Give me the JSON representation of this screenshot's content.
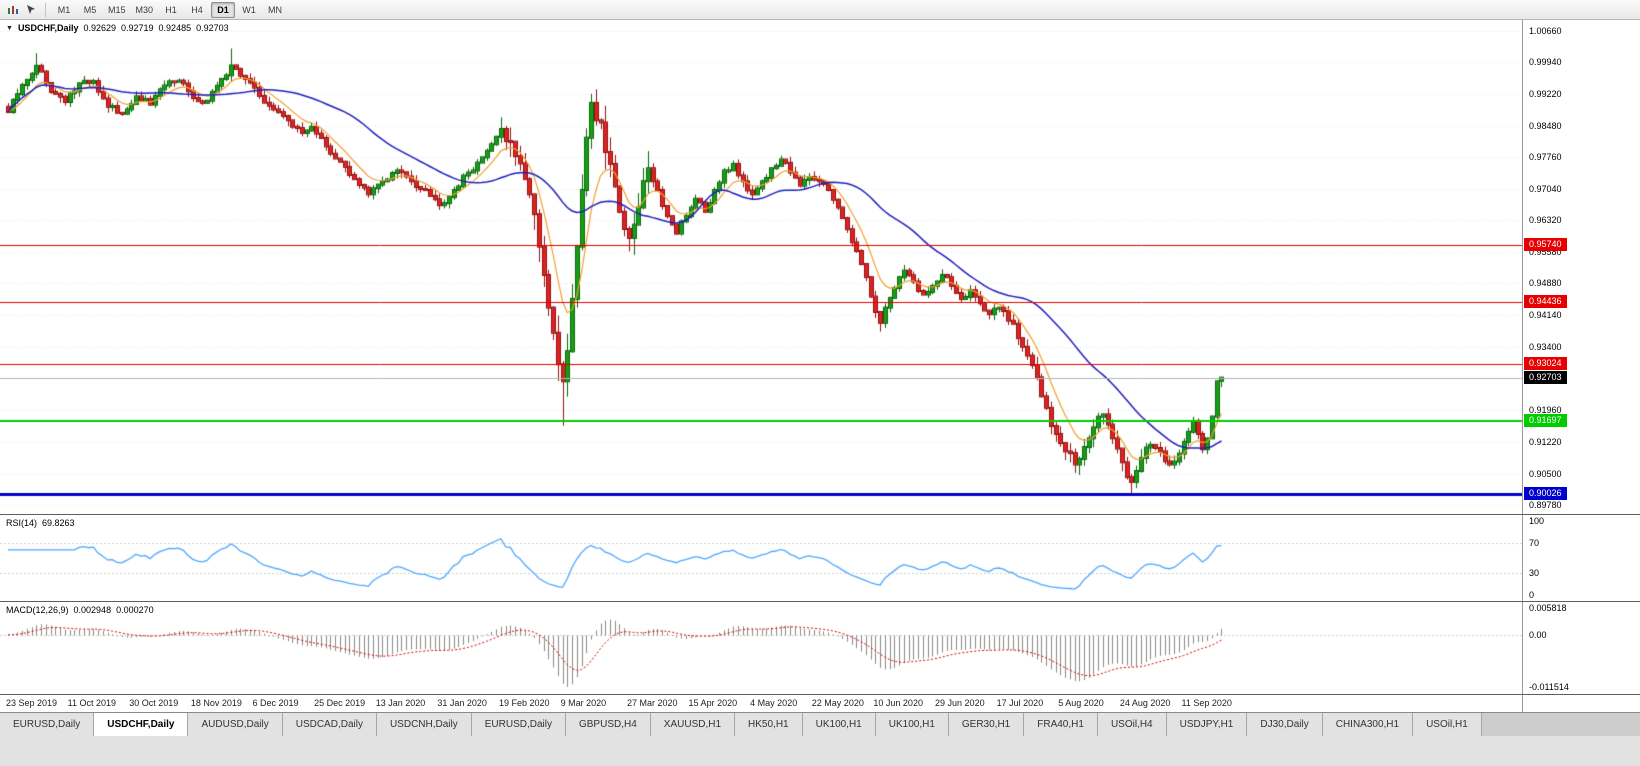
{
  "icons": {
    "expand_arrow": "▼"
  },
  "toolbar": {
    "timeframes": [
      "M1",
      "M5",
      "M15",
      "M30",
      "H1",
      "H4",
      "D1",
      "W1",
      "MN"
    ],
    "active_timeframe": "D1"
  },
  "chart": {
    "title": {
      "symbol": "USDCHF,Daily",
      "open": "0.92629",
      "high": "0.92719",
      "low": "0.92485",
      "close": "0.92703"
    }
  },
  "indicators": {
    "rsi": {
      "name": "RSI(14)",
      "value": "69.8263",
      "scale": [
        {
          "label": "100",
          "value": 100
        },
        {
          "label": "70",
          "value": 70
        },
        {
          "label": "30",
          "value": 30
        },
        {
          "label": "0",
          "value": 0
        }
      ],
      "grid_levels": [
        70,
        30
      ],
      "line_color": "#4da6ff"
    },
    "macd": {
      "name": "MACD(12,26,9)",
      "main": "0.002948",
      "signal": "0.000270",
      "scale": [
        {
          "label": "0.005818",
          "value": 0.005818
        },
        {
          "label": "0.00",
          "value": 0
        },
        {
          "label": "-0.011514",
          "value": -0.011514
        }
      ],
      "histogram_color": "#8a8a8a",
      "signal_color": "#d40000"
    }
  },
  "tabs": {
    "active_index": 1,
    "items": [
      "EURUSD,Daily",
      "USDCHF,Daily",
      "AUDUSD,Daily",
      "USDCAD,Daily",
      "USDCNH,Daily",
      "EURUSD,Daily",
      "GBPUSD,H4",
      "XAUUSD,H1",
      "HK50,H1",
      "UK100,H1",
      "UK100,H1",
      "GER30,H1",
      "FRA40,H1",
      "USOil,H4",
      "USDJPY,H1",
      "DJ30,Daily",
      "CHINA300,H1",
      "USOil,H1"
    ]
  },
  "chart_data": {
    "type": "candlestick",
    "symbol": "USDCHF",
    "timeframe": "Daily",
    "bars": 257,
    "up_color": "#14a014",
    "up_border": "#0c640c",
    "down_color": "#dd2222",
    "down_border": "#941111",
    "price_scale": {
      "ticks": [
        {
          "label": "1.00660",
          "value": 1.0066
        },
        {
          "label": "0.99940",
          "value": 0.9994
        },
        {
          "label": "0.99220",
          "value": 0.9922
        },
        {
          "label": "0.98480",
          "value": 0.9848
        },
        {
          "label": "0.97760",
          "value": 0.9776
        },
        {
          "label": "0.97040",
          "value": 0.9704
        },
        {
          "label": "0.96320",
          "value": 0.9632
        },
        {
          "label": "0.95580",
          "value": 0.9558
        },
        {
          "label": "0.94880",
          "value": 0.9488
        },
        {
          "label": "0.94140",
          "value": 0.9414
        },
        {
          "label": "0.93400",
          "value": 0.934
        },
        {
          "label": "0.91960",
          "value": 0.9196
        },
        {
          "label": "0.91220",
          "value": 0.9122
        },
        {
          "label": "0.90500",
          "value": 0.905
        },
        {
          "label": "0.89780",
          "value": 0.8978
        }
      ]
    },
    "levels": [
      {
        "label": "0.95740",
        "value": 0.9574,
        "color": "#e60000",
        "width": 1
      },
      {
        "label": "0.94436",
        "value": 0.94436,
        "color": "#e60000",
        "width": 1
      },
      {
        "label": "0.93024",
        "value": 0.93024,
        "color": "#e60000",
        "width": 1
      },
      {
        "label": "0.91697",
        "value": 0.91697,
        "color": "#00cc00",
        "width": 2
      },
      {
        "label": "0.90026",
        "value": 0.90026,
        "color": "#0000cc",
        "width": 3
      }
    ],
    "current_price": {
      "label": "0.92703",
      "value": 0.92703,
      "badge_color": "#000000",
      "line_color": "#b4b4b4"
    },
    "moving_averages": [
      {
        "type": "ema",
        "period": 8,
        "color": "#f0a030",
        "width": 1.2
      },
      {
        "type": "sma",
        "period": 30,
        "color": "#1f1fbf",
        "width": 1.5
      }
    ],
    "time_labels": [
      {
        "text": "23 Sep 2019",
        "bar": 0
      },
      {
        "text": "11 Oct 2019",
        "bar": 13
      },
      {
        "text": "30 Oct 2019",
        "bar": 26
      },
      {
        "text": "18 Nov 2019",
        "bar": 39
      },
      {
        "text": "6 Dec 2019",
        "bar": 52
      },
      {
        "text": "25 Dec 2019",
        "bar": 65
      },
      {
        "text": "13 Jan 2020",
        "bar": 78
      },
      {
        "text": "31 Jan 2020",
        "bar": 91
      },
      {
        "text": "19 Feb 2020",
        "bar": 104
      },
      {
        "text": "9 Mar 2020",
        "bar": 117
      },
      {
        "text": "27 Mar 2020",
        "bar": 131
      },
      {
        "text": "15 Apr 2020",
        "bar": 144
      },
      {
        "text": "4 May 2020",
        "bar": 157
      },
      {
        "text": "22 May 2020",
        "bar": 170
      },
      {
        "text": "10 Jun 2020",
        "bar": 183
      },
      {
        "text": "29 Jun 2020",
        "bar": 196
      },
      {
        "text": "17 Jul 2020",
        "bar": 209
      },
      {
        "text": "5 Aug 2020",
        "bar": 222
      },
      {
        "text": "24 Aug 2020",
        "bar": 235
      },
      {
        "text": "11 Sep 2020",
        "bar": 248
      }
    ],
    "close_anchors": [
      [
        0,
        0.988
      ],
      [
        3,
        0.9942
      ],
      [
        6,
        0.9986
      ],
      [
        9,
        0.9926
      ],
      [
        12,
        0.9903
      ],
      [
        15,
        0.9946
      ],
      [
        18,
        0.9951
      ],
      [
        21,
        0.9892
      ],
      [
        24,
        0.9876
      ],
      [
        27,
        0.9916
      ],
      [
        30,
        0.9897
      ],
      [
        33,
        0.9941
      ],
      [
        36,
        0.9952
      ],
      [
        39,
        0.9912
      ],
      [
        42,
        0.9906
      ],
      [
        45,
        0.9956
      ],
      [
        47,
        0.9987
      ],
      [
        50,
        0.9956
      ],
      [
        53,
        0.9917
      ],
      [
        56,
        0.9886
      ],
      [
        59,
        0.9861
      ],
      [
        62,
        0.9832
      ],
      [
        64,
        0.9846
      ],
      [
        67,
        0.9801
      ],
      [
        70,
        0.9766
      ],
      [
        73,
        0.9726
      ],
      [
        76,
        0.9691
      ],
      [
        79,
        0.9721
      ],
      [
        82,
        0.9746
      ],
      [
        85,
        0.9721
      ],
      [
        88,
        0.9701
      ],
      [
        91,
        0.9666
      ],
      [
        94,
        0.9701
      ],
      [
        97,
        0.9741
      ],
      [
        100,
        0.9776
      ],
      [
        102,
        0.9806
      ],
      [
        104,
        0.9841
      ],
      [
        106,
        0.9812
      ],
      [
        108,
        0.9762
      ],
      [
        110,
        0.9691
      ],
      [
        112,
        0.9571
      ],
      [
        114,
        0.9431
      ],
      [
        116,
        0.9301
      ],
      [
        117,
        0.9262
      ],
      [
        118,
        0.9331
      ],
      [
        119,
        0.9451
      ],
      [
        120,
        0.9571
      ],
      [
        121,
        0.9701
      ],
      [
        122,
        0.9821
      ],
      [
        123,
        0.9901
      ],
      [
        125,
        0.9856
      ],
      [
        127,
        0.9761
      ],
      [
        129,
        0.9651
      ],
      [
        131,
        0.9591
      ],
      [
        133,
        0.9661
      ],
      [
        135,
        0.9751
      ],
      [
        137,
        0.9701
      ],
      [
        139,
        0.9641
      ],
      [
        141,
        0.9601
      ],
      [
        143,
        0.9641
      ],
      [
        145,
        0.9681
      ],
      [
        147,
        0.9651
      ],
      [
        149,
        0.9701
      ],
      [
        151,
        0.9746
      ],
      [
        153,
        0.9761
      ],
      [
        155,
        0.9721
      ],
      [
        157,
        0.9691
      ],
      [
        159,
        0.9721
      ],
      [
        161,
        0.9751
      ],
      [
        163,
        0.9771
      ],
      [
        165,
        0.9741
      ],
      [
        167,
        0.9711
      ],
      [
        169,
        0.9731
      ],
      [
        171,
        0.9721
      ],
      [
        173,
        0.9701
      ],
      [
        175,
        0.9661
      ],
      [
        177,
        0.9611
      ],
      [
        179,
        0.9561
      ],
      [
        181,
        0.9501
      ],
      [
        183,
        0.9421
      ],
      [
        184,
        0.9396
      ],
      [
        185,
        0.9431
      ],
      [
        187,
        0.9476
      ],
      [
        189,
        0.9516
      ],
      [
        191,
        0.9491
      ],
      [
        193,
        0.9461
      ],
      [
        195,
        0.9481
      ],
      [
        197,
        0.9506
      ],
      [
        199,
        0.9481
      ],
      [
        201,
        0.9451
      ],
      [
        203,
        0.9471
      ],
      [
        205,
        0.9441
      ],
      [
        207,
        0.9416
      ],
      [
        209,
        0.9431
      ],
      [
        211,
        0.9401
      ],
      [
        213,
        0.9361
      ],
      [
        215,
        0.9321
      ],
      [
        217,
        0.9271
      ],
      [
        219,
        0.9201
      ],
      [
        221,
        0.9141
      ],
      [
        223,
        0.9101
      ],
      [
        225,
        0.9071
      ],
      [
        227,
        0.9111
      ],
      [
        229,
        0.9156
      ],
      [
        231,
        0.9186
      ],
      [
        233,
        0.9131
      ],
      [
        235,
        0.9076
      ],
      [
        237,
        0.9031
      ],
      [
        238,
        0.9056
      ],
      [
        239,
        0.9086
      ],
      [
        241,
        0.9116
      ],
      [
        243,
        0.9101
      ],
      [
        245,
        0.9071
      ],
      [
        247,
        0.9096
      ],
      [
        249,
        0.9146
      ],
      [
        250,
        0.9171
      ],
      [
        251,
        0.9141
      ],
      [
        252,
        0.9106
      ],
      [
        253,
        0.9131
      ],
      [
        254,
        0.9181
      ],
      [
        255,
        0.9262
      ],
      [
        256,
        0.92703
      ]
    ],
    "noise": {
      "base": 0.0008,
      "zones": [
        {
          "from": 104,
          "to": 135,
          "amp": 0.0026
        },
        {
          "from": 209,
          "to": 240,
          "amp": 0.0014
        }
      ]
    },
    "wick": {
      "base": 0.0014,
      "zones": [
        {
          "from": 104,
          "to": 135,
          "amp": 0.0042
        },
        {
          "from": 209,
          "to": 240,
          "amp": 0.0022
        }
      ]
    },
    "overrides": [
      {
        "i": 6,
        "high": 1.0015
      },
      {
        "i": 47,
        "high": 1.0026
      },
      {
        "i": 117,
        "low": 0.916
      },
      {
        "i": 123,
        "high": 0.9922
      },
      {
        "i": 184,
        "low": 0.9376
      },
      {
        "i": 226,
        "low": 0.9047
      },
      {
        "i": 237,
        "low": 0.8999
      },
      {
        "i": 256,
        "open": 0.92629,
        "high": 0.92719,
        "low": 0.92485,
        "close": 0.92703
      }
    ]
  }
}
